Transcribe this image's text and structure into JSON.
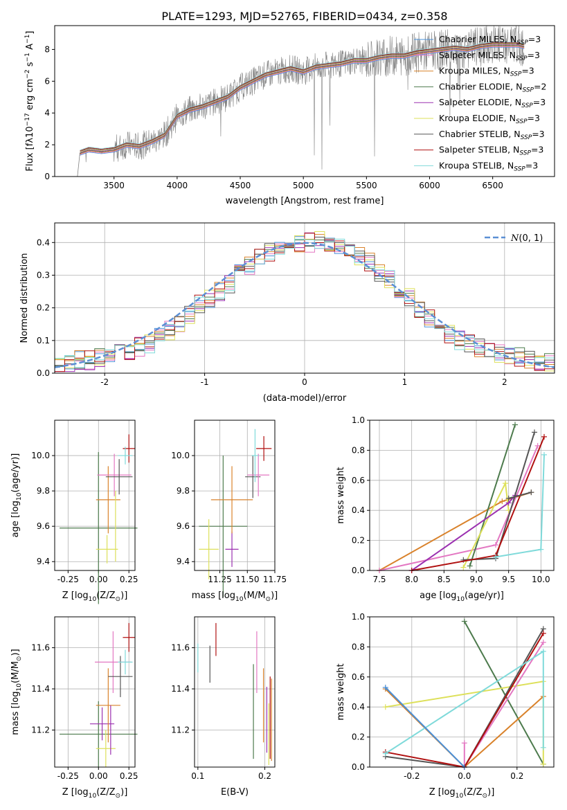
{
  "figure_title": "PLATE=1293, MJD=52765, FIBERID=0434, z=0.358",
  "colors": {
    "chabrier_miles": "#4a90d9",
    "salpeter_miles": "#e377c2",
    "kroupa_miles": "#d9822b",
    "chabrier_elodie": "#4c7a4c",
    "salpeter_elodie": "#9b30b0",
    "kroupa_elodie": "#dde05a",
    "chabrier_stelib": "#555555",
    "salpeter_stelib": "#b01010",
    "kroupa_stelib": "#7fdada",
    "normal_curve": "#5b8fd4",
    "grid": "#b0b0b0"
  },
  "chart_data": [
    {
      "id": "spectrum",
      "type": "line",
      "xlabel": "wavelength [Angstrom, rest frame]",
      "ylabel": "Flux [f$_\\lambda$10$^{-17}$ erg cm$^{-2}$ s$^{-1}$ A$^{-1}$]",
      "ylabel_parts": [
        "Flux [f",
        "λ",
        "10",
        "−17",
        " erg cm",
        "−2",
        " s",
        "−1",
        " A",
        "−1",
        "]"
      ],
      "xlim": [
        3030,
        6990
      ],
      "ylim": [
        0,
        9.5
      ],
      "xticks": [
        3500,
        4000,
        4500,
        5000,
        5500,
        6000,
        6500
      ],
      "yticks": [
        0,
        2,
        4,
        6,
        8
      ],
      "grid": false,
      "legend_placement": "top-right",
      "legend": [
        {
          "label": "Chabrier MILES, N",
          "sub": "SSP",
          "tail": "=3",
          "color_key": "chabrier_miles"
        },
        {
          "label": "Salpeter MILES, N",
          "sub": "SSP",
          "tail": "=3",
          "color_key": "salpeter_miles"
        },
        {
          "label": "Kroupa MILES, N",
          "sub": "SSP",
          "tail": "=3",
          "color_key": "kroupa_miles"
        },
        {
          "label": "Chabrier ELODIE, N",
          "sub": "SSP",
          "tail": "=2",
          "color_key": "chabrier_elodie"
        },
        {
          "label": "Salpeter ELODIE, N",
          "sub": "SSP",
          "tail": "=3",
          "color_key": "salpeter_elodie"
        },
        {
          "label": "Kroupa ELODIE, N",
          "sub": "SSP",
          "tail": "=3",
          "color_key": "kroupa_elodie"
        },
        {
          "label": "Chabrier STELIB, N",
          "sub": "SSP",
          "tail": "=3",
          "color_key": "chabrier_stelib"
        },
        {
          "label": "Salpeter STELIB, N",
          "sub": "SSP",
          "tail": "=3",
          "color_key": "salpeter_stelib"
        },
        {
          "label": "Kroupa STELIB, N",
          "sub": "SSP",
          "tail": "=3",
          "color_key": "kroupa_stelib"
        }
      ],
      "data_line": {
        "color": "#808080",
        "x": [
          3210,
          3230,
          3300,
          3400,
          3500,
          3600,
          3700,
          3800,
          3900,
          4000,
          4100,
          4200,
          4300,
          4400,
          4500,
          4600,
          4700,
          4800,
          4900,
          5000,
          5100,
          5200,
          5300,
          5400,
          5500,
          5600,
          5700,
          5800,
          5900,
          6000,
          6100,
          6200,
          6300,
          6400,
          6500,
          6600,
          6700,
          6750
        ],
        "y": [
          0,
          1.5,
          1.7,
          1.6,
          1.7,
          2.0,
          1.9,
          2.2,
          2.6,
          3.8,
          4.2,
          4.4,
          4.7,
          5.0,
          5.6,
          6.0,
          6.4,
          6.6,
          6.8,
          6.6,
          6.9,
          7.0,
          7.1,
          7.3,
          7.3,
          7.5,
          7.6,
          7.6,
          7.8,
          7.9,
          8.0,
          8.1,
          8.0,
          8.2,
          8.3,
          8.3,
          8.3,
          8.2
        ]
      },
      "model_line": {
        "x": [
          3210,
          3230,
          3300,
          3400,
          3500,
          3600,
          3700,
          3800,
          3900,
          4000,
          4100,
          4200,
          4300,
          4400,
          4500,
          4600,
          4700,
          4800,
          4900,
          5000,
          5100,
          5200,
          5300,
          5400,
          5500,
          5600,
          5700,
          5800,
          5900,
          6000,
          6100,
          6200,
          6300,
          6400,
          6500,
          6600,
          6700,
          6750
        ],
        "y": [
          0,
          1.5,
          1.7,
          1.6,
          1.7,
          2.0,
          1.9,
          2.2,
          2.6,
          3.8,
          4.2,
          4.4,
          4.7,
          5.0,
          5.6,
          6.0,
          6.4,
          6.6,
          6.8,
          6.6,
          6.9,
          7.0,
          7.1,
          7.3,
          7.3,
          7.5,
          7.6,
          7.6,
          7.8,
          7.9,
          8.0,
          8.1,
          8.0,
          8.2,
          8.3,
          8.3,
          8.3,
          8.2
        ]
      }
    },
    {
      "id": "residuals",
      "type": "histogram",
      "xlabel": "(data-model)/error",
      "ylabel": "Normed distribution",
      "xlim": [
        -2.5,
        2.5
      ],
      "ylim": [
        0,
        0.46
      ],
      "xticks": [
        -2,
        -1,
        0,
        1,
        2
      ],
      "yticks": [
        0.0,
        0.1,
        0.2,
        0.3,
        0.4
      ],
      "grid": true,
      "legend_placement": "top-right",
      "legend": [
        {
          "label_script": "N",
          "label_rest": "(0, 1)",
          "style": "dashed",
          "color_key": "normal_curve"
        }
      ],
      "bin_start": -2.5,
      "bin_width": 0.1,
      "values": [
        0.03,
        0.03,
        0.04,
        0.04,
        0.05,
        0.05,
        0.06,
        0.07,
        0.08,
        0.09,
        0.11,
        0.13,
        0.15,
        0.18,
        0.21,
        0.23,
        0.25,
        0.27,
        0.31,
        0.33,
        0.35,
        0.37,
        0.38,
        0.39,
        0.4,
        0.4,
        0.41,
        0.4,
        0.39,
        0.38,
        0.36,
        0.34,
        0.31,
        0.29,
        0.26,
        0.23,
        0.2,
        0.17,
        0.15,
        0.12,
        0.1,
        0.09,
        0.08,
        0.07,
        0.06,
        0.05,
        0.05,
        0.04,
        0.03,
        0.03
      ]
    },
    {
      "id": "age-vs-Z",
      "type": "scatter",
      "xlabel_parts": [
        "Z [log",
        "10",
        "(Z/Z",
        "⊙",
        ")]"
      ],
      "ylabel_parts": [
        "age  [log",
        "10",
        "(age/yr)]"
      ],
      "xlim": [
        -0.36,
        0.3
      ],
      "ylim": [
        9.35,
        10.2
      ],
      "xticks": [
        "-0.25",
        "0.00",
        "0.25"
      ],
      "yticks": [
        "9.4",
        "9.6",
        "9.8",
        "10.0"
      ]
    },
    {
      "id": "age-vs-mass",
      "type": "scatter",
      "xlabel_parts": [
        "mass [log",
        "10",
        "(M/M",
        "⊙",
        ")]"
      ],
      "xlim": [
        11.02,
        11.75
      ],
      "ylim": [
        9.35,
        10.2
      ],
      "xticks": [
        "11.25",
        "11.50",
        "11.75"
      ],
      "yticks": [
        "9.4",
        "9.6",
        "9.8",
        "10.0"
      ]
    },
    {
      "id": "mass-weight-vs-age",
      "type": "line",
      "xlabel_parts": [
        "age  [log",
        "10",
        "(age/yr)]"
      ],
      "ylabel": "mass weight",
      "xlim": [
        7.35,
        10.2
      ],
      "ylim": [
        0,
        1.0
      ],
      "xticks": [
        "7.5",
        "8.0",
        "8.5",
        "9.0",
        "9.5",
        "10.0"
      ],
      "yticks": [
        "0.0",
        "0.2",
        "0.4",
        "0.6",
        "0.8",
        "1.0"
      ]
    },
    {
      "id": "mass-vs-Z",
      "type": "scatter",
      "xlabel_parts": [
        "Z [log",
        "10",
        "(Z/Z",
        "⊙",
        ")]"
      ],
      "ylabel_parts": [
        "mass [log",
        "10",
        "(M/M",
        "⊙",
        ")]"
      ],
      "xlim": [
        -0.36,
        0.3
      ],
      "ylim": [
        11.02,
        11.75
      ],
      "xticks": [
        "-0.25",
        "0.00",
        "0.25"
      ],
      "yticks": [
        "11.2",
        "11.4",
        "11.6"
      ]
    },
    {
      "id": "mass-vs-ebv",
      "type": "scatter",
      "xlabel": "E(B-V)",
      "xlim": [
        0.095,
        0.215
      ],
      "ylim": [
        11.02,
        11.75
      ],
      "xticks": [
        "0.1",
        "0.2"
      ],
      "yticks": [
        "11.2",
        "11.4",
        "11.6"
      ]
    },
    {
      "id": "mass-weight-vs-Z",
      "type": "line",
      "xlabel_parts": [
        "Z [log",
        "10",
        "(Z/Z",
        "⊙",
        ")]"
      ],
      "ylabel": "mass weight",
      "xlim": [
        -0.36,
        0.34
      ],
      "ylim": [
        0,
        1.0
      ],
      "xticks": [
        "-0.2",
        "0.0",
        "0.2"
      ],
      "yticks": [
        "0.0",
        "0.2",
        "0.4",
        "0.6",
        "0.8",
        "1.0"
      ]
    }
  ]
}
